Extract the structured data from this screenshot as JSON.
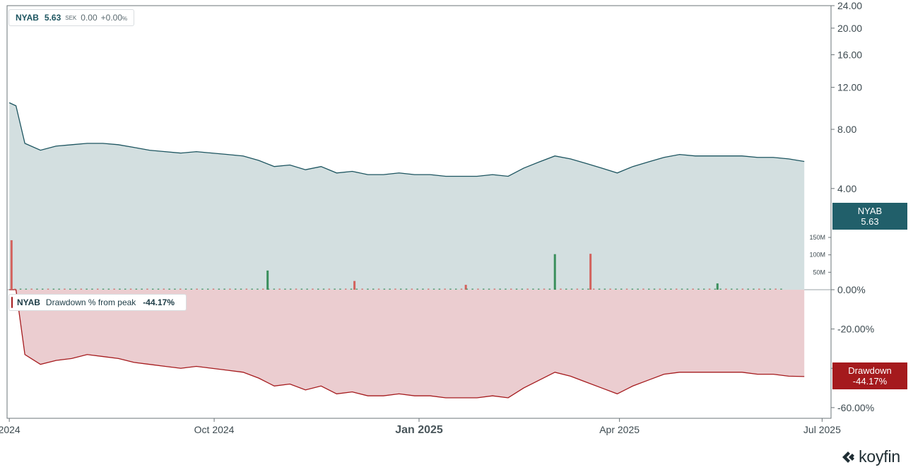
{
  "legend_price": {
    "ticker": "NYAB",
    "value": "5.63",
    "currency": "SEK",
    "change": "0.00",
    "change_pct": "+0.00",
    "pct_sign": "%"
  },
  "legend_drawdown": {
    "ticker": "NYAB",
    "label": "Drawdown % from peak",
    "value": "-44.17%"
  },
  "tag_price": {
    "name": "NYAB",
    "value": "5.63"
  },
  "tag_drawdown": {
    "name": "Drawdown",
    "value": "-44.17%"
  },
  "brand": {
    "name": "koyfin"
  },
  "colors": {
    "price_line": "#1d5560",
    "price_fill": "#d3dfe0",
    "dd_line": "#a51a1d",
    "dd_fill": "#ebcdd0",
    "vol_up": "#3a8f5c",
    "vol_down": "#d3625d",
    "tag_price": "#215f6a",
    "tag_dd": "#a51a1d"
  },
  "chart_data": [
    {
      "type": "area",
      "title": "",
      "series": [
        {
          "name": "NYAB",
          "x": [
            "2024-07-01",
            "2024-07-04",
            "2024-07-08",
            "2024-07-15",
            "2024-07-22",
            "2024-07-29",
            "2024-08-05",
            "2024-08-12",
            "2024-08-19",
            "2024-08-26",
            "2024-09-02",
            "2024-09-09",
            "2024-09-16",
            "2024-09-23",
            "2024-09-30",
            "2024-10-07",
            "2024-10-14",
            "2024-10-21",
            "2024-10-28",
            "2024-11-04",
            "2024-11-11",
            "2024-11-18",
            "2024-11-25",
            "2024-12-02",
            "2024-12-09",
            "2024-12-16",
            "2024-12-23",
            "2024-12-30",
            "2025-01-06",
            "2025-01-13",
            "2025-01-20",
            "2025-01-27",
            "2025-02-03",
            "2025-02-10",
            "2025-02-17",
            "2025-02-24",
            "2025-03-03",
            "2025-03-10",
            "2025-03-17",
            "2025-03-24",
            "2025-03-31",
            "2025-04-07",
            "2025-04-14",
            "2025-04-21",
            "2025-04-28",
            "2025-05-05",
            "2025-05-12",
            "2025-05-19",
            "2025-05-26",
            "2025-06-02",
            "2025-06-09",
            "2025-06-16",
            "2025-06-23"
          ],
          "values": [
            10.4,
            10.1,
            6.9,
            6.4,
            6.7,
            6.8,
            6.9,
            6.9,
            6.8,
            6.6,
            6.4,
            6.3,
            6.2,
            6.3,
            6.2,
            6.1,
            6.0,
            5.7,
            5.3,
            5.4,
            5.1,
            5.3,
            4.9,
            5.0,
            4.8,
            4.8,
            4.9,
            4.8,
            4.8,
            4.7,
            4.7,
            4.7,
            4.8,
            4.7,
            5.2,
            5.6,
            6.0,
            5.8,
            5.5,
            5.2,
            4.9,
            5.3,
            5.6,
            5.9,
            6.1,
            6.0,
            6.0,
            6.0,
            6.0,
            5.9,
            5.9,
            5.8,
            5.63
          ]
        }
      ],
      "volume": {
        "x": [
          "2024-07-02",
          "2024-10-25",
          "2024-12-03",
          "2025-01-22",
          "2025-03-03",
          "2025-03-19",
          "2025-05-15"
        ],
        "values": [
          142,
          55,
          25,
          14,
          102,
          103,
          18
        ],
        "direction": [
          "down",
          "up",
          "down",
          "down",
          "up",
          "down",
          "up"
        ],
        "ticks": [
          "150M",
          "100M",
          "50M"
        ]
      },
      "yticks": [
        "4.00",
        "8.00",
        "12.00",
        "16.00",
        "20.00",
        "24.00"
      ],
      "ylim": [
        0,
        24
      ],
      "yscale": "log",
      "xticks": [
        "2024",
        "Oct 2024",
        "Jan 2025",
        "Apr 2025",
        "Jul 2025"
      ],
      "xlim": [
        "2024-06-30",
        "2025-07-05"
      ]
    },
    {
      "type": "area",
      "title": "",
      "series": [
        {
          "name": "Drawdown % from peak",
          "x": [
            "2024-07-01",
            "2024-07-04",
            "2024-07-08",
            "2024-07-15",
            "2024-07-22",
            "2024-07-29",
            "2024-08-05",
            "2024-08-12",
            "2024-08-19",
            "2024-08-26",
            "2024-09-02",
            "2024-09-09",
            "2024-09-16",
            "2024-09-23",
            "2024-09-30",
            "2024-10-07",
            "2024-10-14",
            "2024-10-21",
            "2024-10-28",
            "2024-11-04",
            "2024-11-11",
            "2024-11-18",
            "2024-11-25",
            "2024-12-02",
            "2024-12-09",
            "2024-12-16",
            "2024-12-23",
            "2024-12-30",
            "2025-01-06",
            "2025-01-13",
            "2025-01-20",
            "2025-01-27",
            "2025-02-03",
            "2025-02-10",
            "2025-02-17",
            "2025-02-24",
            "2025-03-03",
            "2025-03-10",
            "2025-03-17",
            "2025-03-24",
            "2025-03-31",
            "2025-04-07",
            "2025-04-14",
            "2025-04-21",
            "2025-04-28",
            "2025-05-05",
            "2025-05-12",
            "2025-05-19",
            "2025-05-26",
            "2025-06-02",
            "2025-06-09",
            "2025-06-16",
            "2025-06-23"
          ],
          "values": [
            0,
            0,
            -33,
            -38,
            -36,
            -35,
            -33,
            -34,
            -35,
            -37,
            -38,
            -39,
            -40,
            -39,
            -40,
            -41,
            -42,
            -45,
            -49,
            -48,
            -51,
            -49,
            -53,
            -52,
            -54,
            -54,
            -53,
            -54,
            -54,
            -55,
            -55,
            -55,
            -54,
            -55,
            -50,
            -46,
            -42,
            -44,
            -47,
            -50,
            -53,
            -49,
            -46,
            -43,
            -42,
            -42,
            -42,
            -42,
            -42,
            -43,
            -43,
            -44,
            -44.17
          ]
        }
      ],
      "yticks": [
        "0.00%",
        "-20.00%",
        "-40.00%",
        "-60.00%"
      ],
      "ylim": [
        -64,
        0
      ],
      "xticks": [
        "2024",
        "Oct 2024",
        "Jan 2025",
        "Apr 2025",
        "Jul 2025"
      ],
      "xlim": [
        "2024-06-30",
        "2025-07-05"
      ]
    }
  ]
}
